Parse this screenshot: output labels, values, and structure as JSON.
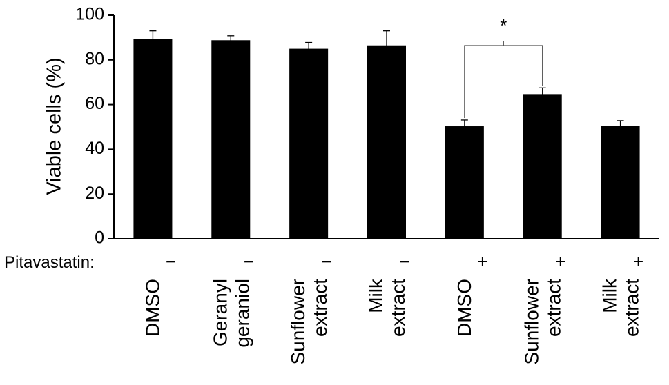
{
  "chart_data": {
    "type": "bar",
    "title": "",
    "xlabel": "",
    "ylabel": "Viable cells (%)",
    "ylim": [
      0,
      100
    ],
    "yticks": [
      0,
      20,
      40,
      60,
      80,
      100
    ],
    "grid": false,
    "legend": "none",
    "bar_color": "#000000",
    "row_label": "Pitavastatin:",
    "categories": [
      {
        "lines": [
          "DMSO"
        ],
        "pitavastatin": "−",
        "value": 89.5,
        "error": 3.5
      },
      {
        "lines": [
          "Geranyl",
          "geraniol"
        ],
        "pitavastatin": "−",
        "value": 88.8,
        "error": 2.0
      },
      {
        "lines": [
          "Sunflower",
          "extract"
        ],
        "pitavastatin": "−",
        "value": 85.0,
        "error": 2.8
      },
      {
        "lines": [
          "Milk",
          "extract"
        ],
        "pitavastatin": "−",
        "value": 86.5,
        "error": 6.5
      },
      {
        "lines": [
          "DMSO"
        ],
        "pitavastatin": "+",
        "value": 50.3,
        "error": 2.8
      },
      {
        "lines": [
          "Sunflower",
          "extract"
        ],
        "pitavastatin": "+",
        "value": 64.7,
        "error": 2.8
      },
      {
        "lines": [
          "Milk",
          "extract"
        ],
        "pitavastatin": "+",
        "value": 50.6,
        "error": 2.2
      }
    ],
    "annotations": [
      {
        "type": "significance",
        "from": 4,
        "to": 5,
        "label": "*"
      }
    ]
  }
}
